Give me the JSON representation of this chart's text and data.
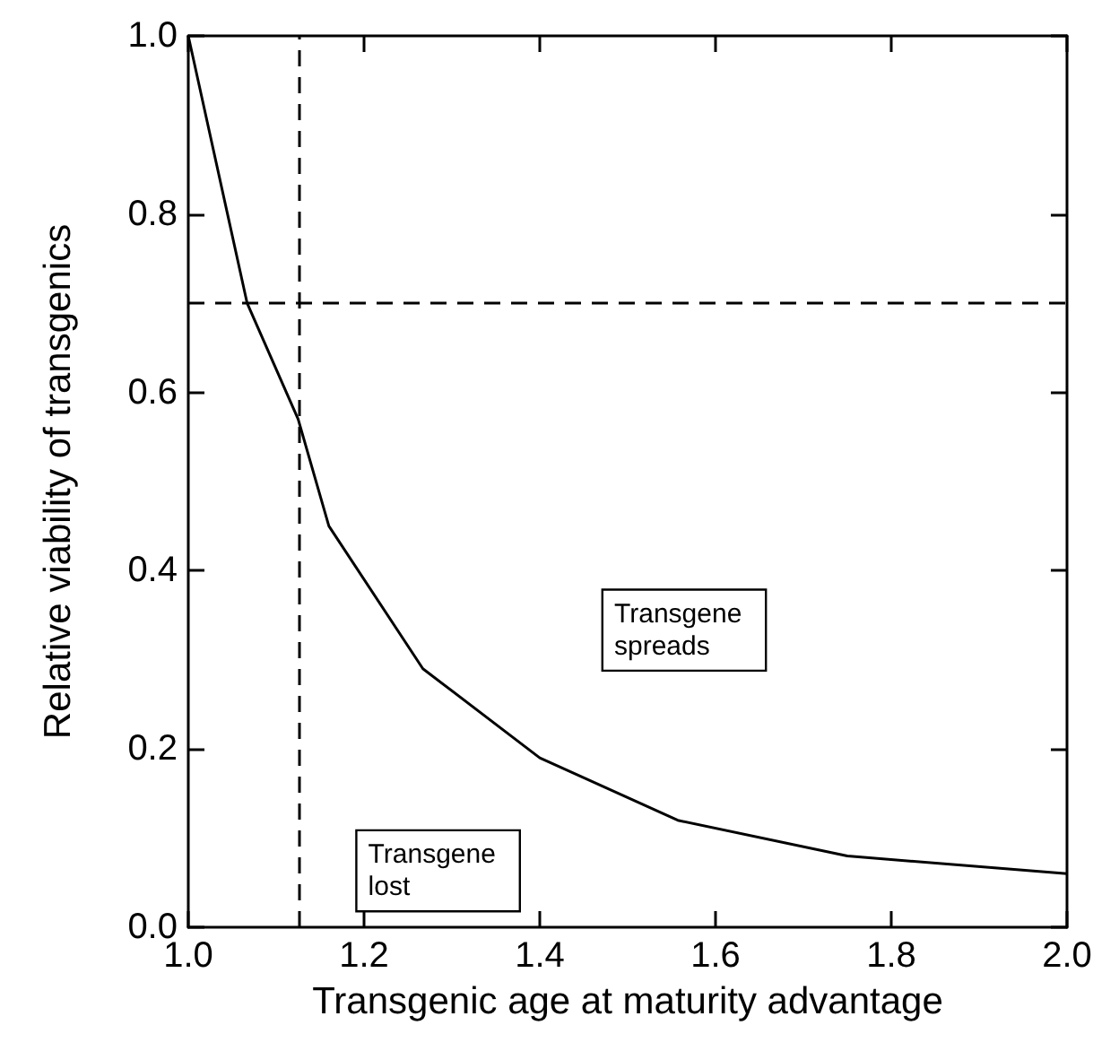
{
  "chart_data": {
    "type": "line",
    "xlabel": "Transgenic age at maturity advantage",
    "ylabel": "Relative viability of transgenics",
    "x": [
      1.0,
      1.067,
      1.125,
      1.16,
      1.267,
      1.4,
      1.557,
      1.75,
      2.0
    ],
    "series": [
      {
        "color": "#000000",
        "values": [
          1.0,
          0.7,
          0.57,
          0.45,
          0.29,
          0.19,
          0.12,
          0.08,
          0.06
        ]
      }
    ],
    "xlim": [
      1.0,
      2.0
    ],
    "ylim": [
      0,
      1
    ],
    "xticks": [
      {
        "value": 1,
        "label": "1.0"
      },
      1.2,
      1.4,
      1.6,
      1.8,
      {
        "value": 2,
        "label": "2.0"
      }
    ],
    "yticks": [
      {
        "value": 0,
        "label": "0.0"
      },
      0.2,
      0.4,
      0.6,
      0.8,
      {
        "value": 1,
        "label": "1.0"
      }
    ],
    "ref_lines": [
      {
        "axis": "x",
        "value": 1.125,
        "line_style": "dashed",
        "color": "#000000"
      },
      {
        "axis": "y",
        "value": 0.7,
        "line_style": "dashed",
        "color": "#000000"
      }
    ],
    "annotations": [
      "Transgene spreads",
      "Transgene lost"
    ],
    "grid": false,
    "marker": "none",
    "line_style": "solid"
  }
}
